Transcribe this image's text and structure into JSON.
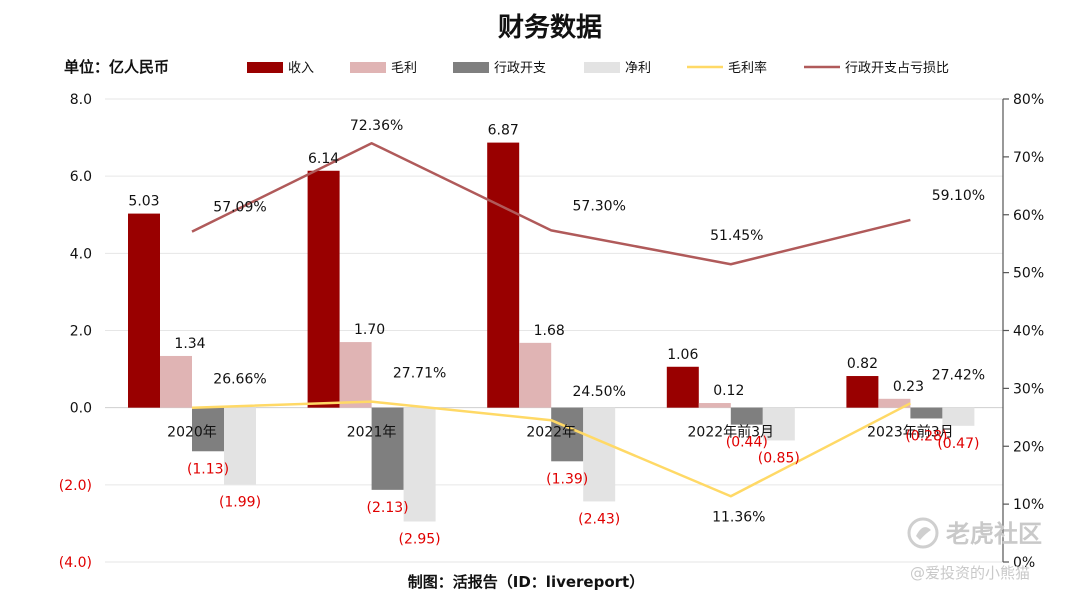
{
  "chart_data": {
    "type": "bar",
    "title": "财务数据",
    "unit_label": "单位：亿人民币",
    "categories": [
      "2020年",
      "2021年",
      "2022年",
      "2022年前3月",
      "2023年前3月"
    ],
    "series": [
      {
        "name": "收入",
        "kind": "bar",
        "axis": "left",
        "color": "#990000",
        "values": [
          5.03,
          6.14,
          6.87,
          1.06,
          0.82
        ],
        "labels": [
          "5.03",
          "6.14",
          "6.87",
          "1.06",
          "0.82"
        ]
      },
      {
        "name": "毛利",
        "kind": "bar",
        "axis": "left",
        "color": "#e0b4b4",
        "values": [
          1.34,
          1.7,
          1.68,
          0.12,
          0.23
        ],
        "labels": [
          "1.34",
          "1.70",
          "1.68",
          "0.12",
          "0.23"
        ]
      },
      {
        "name": "行政开支",
        "kind": "bar",
        "axis": "left",
        "color": "#7f7f7f",
        "values": [
          -1.13,
          -2.13,
          -1.39,
          -0.44,
          -0.28
        ],
        "labels": [
          "(1.13)",
          "(2.13)",
          "(1.39)",
          "(0.44)",
          "(0.28)"
        ]
      },
      {
        "name": "净利",
        "kind": "bar",
        "axis": "left",
        "color": "#e3e3e3",
        "values": [
          -1.99,
          -2.95,
          -2.43,
          -0.85,
          -0.47
        ],
        "labels": [
          "(1.99)",
          "(2.95)",
          "(2.43)",
          "(0.85)",
          "(0.47)"
        ]
      },
      {
        "name": "毛利率",
        "kind": "line",
        "axis": "right",
        "color": "#ffd966",
        "values": [
          26.66,
          27.71,
          24.5,
          11.36,
          27.42
        ],
        "labels": [
          "26.66%",
          "27.71%",
          "24.50%",
          "11.36%",
          "27.42%"
        ]
      },
      {
        "name": "行政开支占亏损比",
        "kind": "line",
        "axis": "right",
        "color": "#b05a5a",
        "values": [
          57.09,
          72.36,
          57.3,
          51.45,
          59.1
        ],
        "labels": [
          "57.09%",
          "72.36%",
          "57.30%",
          "51.45%",
          "59.10%"
        ]
      }
    ],
    "y_left": {
      "min": -4.0,
      "max": 8.0,
      "ticks": [
        "(4.0)",
        "(2.0)",
        "0.0",
        "2.0",
        "4.0",
        "6.0",
        "8.0"
      ]
    },
    "y_right": {
      "min": 0,
      "max": 80,
      "ticks": [
        "0%",
        "10%",
        "20%",
        "30%",
        "40%",
        "50%",
        "60%",
        "70%",
        "80%"
      ]
    },
    "grid": true,
    "legend_position": "top",
    "credit": "制图：活报告（ID：livereport）"
  },
  "watermark": {
    "brand": "老虎社区",
    "user": "@爱投资的小熊猫"
  }
}
